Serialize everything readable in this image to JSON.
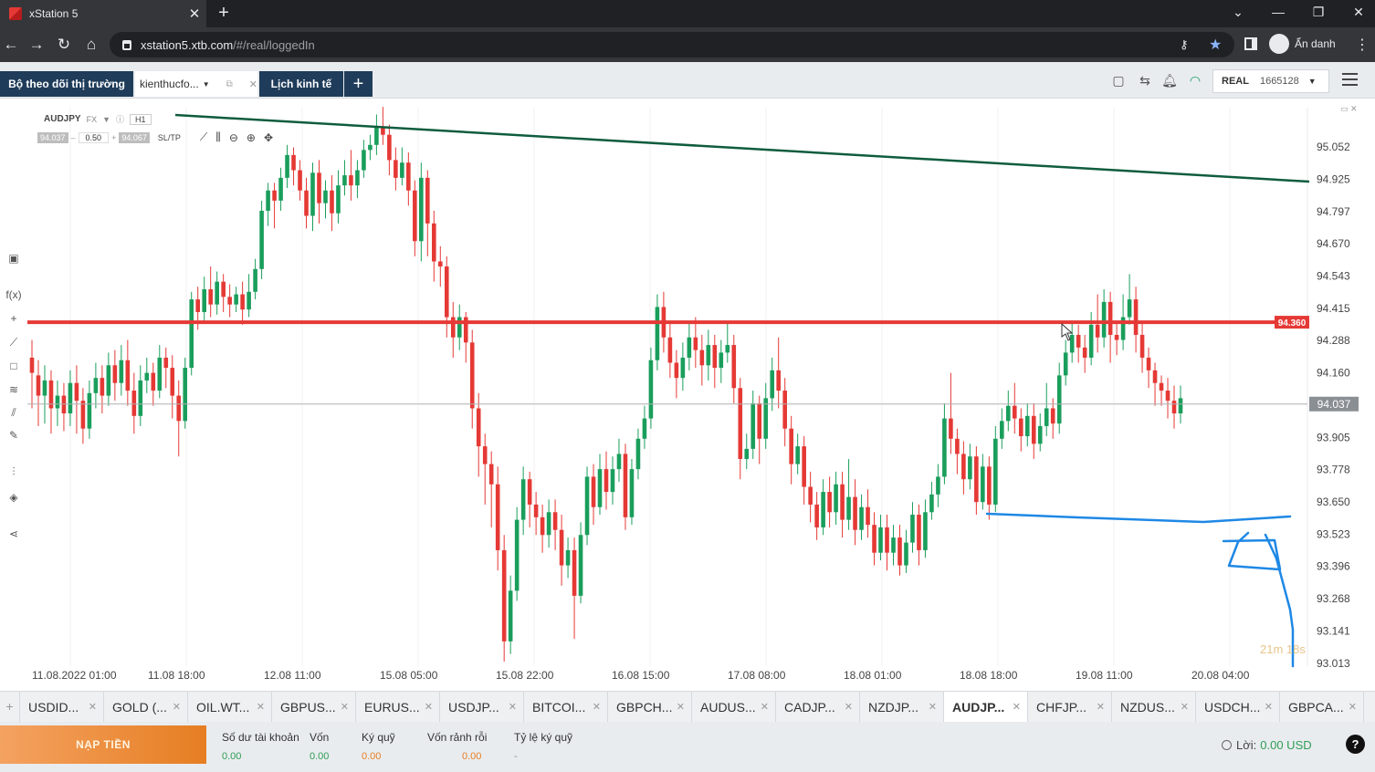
{
  "browser": {
    "tab_title": "xStation 5",
    "url_host": "xstation5.xtb.com",
    "url_path": "/#/real/loggedIn",
    "profile_label": "Ẩn danh"
  },
  "workspace_tabs": [
    "Bộ theo dõi thị trường",
    "kienthucfo...",
    "Lịch kinh tế"
  ],
  "account": {
    "type": "REAL",
    "id": "1665128"
  },
  "chart_header": {
    "symbol": "AUDJPY",
    "market": "FX",
    "timeframe": "H1",
    "bid": "94.037",
    "ask": "94.067",
    "lot": "0.50",
    "sltp": "SL/TP"
  },
  "chart_data": {
    "type": "candlestick",
    "price_axis_labels": [
      "95.052",
      "94.925",
      "94.797",
      "94.670",
      "94.543",
      "94.415",
      "94.288",
      "94.160",
      "94.037",
      "93.905",
      "93.778",
      "93.650",
      "93.523",
      "93.396",
      "93.268",
      "93.141",
      "93.013"
    ],
    "time_axis_labels": [
      "11.08.2022 01:00",
      "11.08 18:00",
      "12.08 11:00",
      "15.08 05:00",
      "15.08 22:00",
      "16.08 15:00",
      "17.08 08:00",
      "18.08 01:00",
      "18.08 18:00",
      "19.08 11:00",
      "20.08 04:00"
    ],
    "ylim": [
      93.013,
      95.052
    ],
    "current_price": "94.037",
    "horizontal_level": {
      "label": "94.360",
      "color": "#e53935"
    },
    "trendline_color": "#0f5c3e",
    "annotation_color": "#1e88e5",
    "up_color": "#1a9e5c",
    "down_color": "#e53935",
    "candles": [
      [
        94.22,
        94.16,
        94.29,
        94.02
      ],
      [
        94.15,
        94.07,
        94.21,
        93.95
      ],
      [
        94.07,
        94.13,
        94.19,
        93.96
      ],
      [
        94.13,
        94.02,
        94.17,
        93.92
      ],
      [
        94.02,
        94.07,
        94.13,
        93.95
      ],
      [
        94.07,
        94.0,
        94.12,
        93.93
      ],
      [
        94.0,
        94.12,
        94.17,
        93.95
      ],
      [
        94.12,
        94.05,
        94.19,
        93.92
      ],
      [
        94.05,
        93.94,
        94.1,
        93.88
      ],
      [
        93.94,
        94.08,
        94.13,
        93.9
      ],
      [
        94.08,
        94.14,
        94.2,
        94.02
      ],
      [
        94.14,
        94.07,
        94.19,
        94.0
      ],
      [
        94.07,
        94.19,
        94.24,
        94.03
      ],
      [
        94.19,
        94.12,
        94.25,
        94.05
      ],
      [
        94.12,
        94.21,
        94.27,
        94.07
      ],
      [
        94.21,
        94.09,
        94.29,
        94.03
      ],
      [
        94.09,
        93.99,
        94.16,
        93.92
      ],
      [
        93.99,
        94.13,
        94.19,
        93.95
      ],
      [
        94.13,
        94.16,
        94.22,
        94.08
      ],
      [
        94.16,
        94.09,
        94.2,
        94.03
      ],
      [
        94.09,
        94.22,
        94.27,
        94.06
      ],
      [
        94.22,
        94.18,
        94.26,
        94.1
      ],
      [
        94.18,
        94.07,
        94.23,
        93.98
      ],
      [
        94.07,
        93.97,
        94.13,
        93.83
      ],
      [
        93.97,
        94.18,
        94.22,
        93.94
      ],
      [
        94.18,
        94.45,
        94.48,
        94.15
      ],
      [
        94.45,
        94.4,
        94.5,
        94.33
      ],
      [
        94.4,
        94.49,
        94.54,
        94.36
      ],
      [
        94.49,
        94.43,
        94.58,
        94.38
      ],
      [
        94.43,
        94.52,
        94.56,
        94.39
      ],
      [
        94.52,
        94.46,
        94.55,
        94.4
      ],
      [
        94.46,
        94.43,
        94.51,
        94.38
      ],
      [
        94.43,
        94.47,
        94.5,
        94.4
      ],
      [
        94.47,
        94.41,
        94.52,
        94.35
      ],
      [
        94.41,
        94.48,
        94.55,
        94.38
      ],
      [
        94.48,
        94.57,
        94.61,
        94.45
      ],
      [
        94.57,
        94.8,
        94.84,
        94.53
      ],
      [
        94.8,
        94.88,
        94.91,
        94.74
      ],
      [
        94.88,
        94.84,
        94.91,
        94.73
      ],
      [
        94.84,
        94.93,
        94.97,
        94.8
      ],
      [
        94.93,
        95.02,
        95.06,
        94.89
      ],
      [
        95.02,
        94.96,
        95.05,
        94.9
      ],
      [
        94.96,
        94.88,
        95.0,
        94.84
      ],
      [
        94.88,
        94.78,
        94.93,
        94.73
      ],
      [
        94.78,
        94.95,
        94.99,
        94.72
      ],
      [
        94.95,
        94.83,
        95.0,
        94.75
      ],
      [
        94.83,
        94.88,
        94.92,
        94.77
      ],
      [
        94.88,
        94.79,
        94.94,
        94.72
      ],
      [
        94.79,
        94.9,
        94.96,
        94.75
      ],
      [
        94.9,
        94.94,
        95.0,
        94.86
      ],
      [
        94.94,
        94.9,
        95.04,
        94.84
      ],
      [
        94.9,
        94.96,
        95.0,
        94.85
      ],
      [
        94.96,
        95.04,
        95.08,
        94.93
      ],
      [
        95.04,
        95.06,
        95.1,
        95.0
      ],
      [
        95.06,
        95.13,
        95.18,
        95.02
      ],
      [
        95.13,
        95.1,
        95.21,
        95.06
      ],
      [
        95.1,
        95.0,
        95.14,
        94.94
      ],
      [
        95.0,
        94.93,
        95.05,
        94.88
      ],
      [
        94.93,
        94.99,
        95.05,
        94.9
      ],
      [
        94.99,
        94.88,
        95.03,
        94.82
      ],
      [
        94.88,
        94.68,
        94.92,
        94.62
      ],
      [
        94.68,
        94.93,
        94.99,
        94.6
      ],
      [
        94.93,
        94.75,
        94.96,
        94.62
      ],
      [
        94.75,
        94.6,
        94.8,
        94.52
      ],
      [
        94.6,
        94.58,
        94.66,
        94.5
      ],
      [
        94.58,
        94.38,
        94.62,
        94.3
      ],
      [
        94.38,
        94.3,
        94.44,
        94.22
      ],
      [
        94.3,
        94.38,
        94.43,
        94.25
      ],
      [
        94.38,
        94.28,
        94.4,
        94.2
      ],
      [
        94.28,
        94.02,
        94.33,
        93.94
      ],
      [
        94.02,
        93.87,
        94.08,
        93.75
      ],
      [
        93.87,
        93.8,
        93.92,
        93.64
      ],
      [
        93.8,
        93.72,
        93.85,
        93.55
      ],
      [
        93.72,
        93.46,
        93.79,
        93.38
      ],
      [
        93.46,
        93.1,
        93.52,
        93.02
      ],
      [
        93.1,
        93.3,
        93.36,
        93.05
      ],
      [
        93.3,
        93.58,
        93.63,
        93.26
      ],
      [
        93.58,
        93.74,
        93.79,
        93.52
      ],
      [
        93.74,
        93.64,
        93.77,
        93.55
      ],
      [
        93.64,
        93.59,
        93.69,
        93.52
      ],
      [
        93.59,
        93.52,
        93.64,
        93.45
      ],
      [
        93.52,
        93.61,
        93.66,
        93.47
      ],
      [
        93.61,
        93.54,
        93.66,
        93.46
      ],
      [
        93.54,
        93.4,
        93.6,
        93.32
      ],
      [
        93.4,
        93.46,
        93.51,
        93.35
      ],
      [
        93.46,
        93.28,
        93.51,
        93.11
      ],
      [
        93.28,
        93.52,
        93.57,
        93.25
      ],
      [
        93.52,
        93.75,
        93.79,
        93.48
      ],
      [
        93.75,
        93.63,
        93.8,
        93.56
      ],
      [
        93.63,
        93.78,
        93.84,
        93.6
      ],
      [
        93.78,
        93.69,
        93.85,
        93.62
      ],
      [
        93.69,
        93.78,
        93.83,
        93.64
      ],
      [
        93.78,
        93.84,
        93.9,
        93.73
      ],
      [
        93.84,
        93.59,
        93.88,
        93.54
      ],
      [
        93.59,
        93.78,
        93.82,
        93.56
      ],
      [
        93.78,
        93.9,
        93.94,
        93.74
      ],
      [
        93.9,
        93.98,
        94.03,
        93.86
      ],
      [
        93.98,
        94.21,
        94.26,
        93.94
      ],
      [
        94.21,
        94.42,
        94.47,
        94.17
      ],
      [
        94.42,
        94.3,
        94.48,
        94.24
      ],
      [
        94.3,
        94.2,
        94.36,
        94.14
      ],
      [
        94.2,
        94.14,
        94.25,
        94.06
      ],
      [
        94.14,
        94.22,
        94.28,
        94.09
      ],
      [
        94.22,
        94.3,
        94.36,
        94.17
      ],
      [
        94.3,
        94.25,
        94.38,
        94.18
      ],
      [
        94.25,
        94.19,
        94.31,
        94.11
      ],
      [
        94.19,
        94.27,
        94.33,
        94.13
      ],
      [
        94.27,
        94.18,
        94.31,
        94.1
      ],
      [
        94.18,
        94.24,
        94.29,
        94.12
      ],
      [
        94.24,
        94.27,
        94.36,
        94.2
      ],
      [
        94.27,
        94.1,
        94.31,
        94.04
      ],
      [
        94.1,
        93.82,
        94.14,
        93.74
      ],
      [
        93.82,
        93.86,
        93.92,
        93.78
      ],
      [
        93.86,
        94.04,
        94.09,
        93.82
      ],
      [
        94.04,
        93.9,
        94.07,
        93.8
      ],
      [
        93.9,
        94.06,
        94.12,
        93.86
      ],
      [
        94.06,
        94.17,
        94.22,
        94.01
      ],
      [
        94.17,
        94.09,
        94.3,
        94.02
      ],
      [
        94.09,
        93.94,
        94.14,
        93.87
      ],
      [
        93.94,
        93.8,
        93.99,
        93.72
      ],
      [
        93.8,
        93.87,
        93.92,
        93.76
      ],
      [
        93.87,
        93.71,
        93.91,
        93.64
      ],
      [
        93.71,
        93.64,
        93.77,
        93.57
      ],
      [
        93.64,
        93.55,
        93.69,
        93.5
      ],
      [
        93.55,
        93.69,
        93.74,
        93.52
      ],
      [
        93.69,
        93.61,
        93.75,
        93.55
      ],
      [
        93.61,
        93.72,
        93.77,
        93.56
      ],
      [
        93.72,
        93.58,
        93.77,
        93.51
      ],
      [
        93.58,
        93.67,
        93.82,
        93.54
      ],
      [
        93.67,
        93.54,
        93.74,
        93.48
      ],
      [
        93.54,
        93.63,
        93.68,
        93.5
      ],
      [
        93.63,
        93.56,
        93.7,
        93.51
      ],
      [
        93.56,
        93.45,
        93.61,
        93.4
      ],
      [
        93.45,
        93.55,
        93.6,
        93.42
      ],
      [
        93.55,
        93.45,
        93.6,
        93.38
      ],
      [
        93.45,
        93.51,
        93.56,
        93.4
      ],
      [
        93.51,
        93.4,
        93.56,
        93.36
      ],
      [
        93.4,
        93.49,
        93.54,
        93.37
      ],
      [
        93.49,
        93.6,
        93.65,
        93.45
      ],
      [
        93.6,
        93.46,
        93.64,
        93.4
      ],
      [
        93.46,
        93.61,
        93.66,
        93.43
      ],
      [
        93.61,
        93.68,
        93.73,
        93.58
      ],
      [
        93.68,
        93.75,
        93.8,
        93.63
      ],
      [
        93.75,
        93.98,
        94.04,
        93.72
      ],
      [
        93.98,
        93.9,
        94.16,
        93.84
      ],
      [
        93.9,
        93.84,
        93.94,
        93.76
      ],
      [
        93.84,
        93.74,
        93.89,
        93.68
      ],
      [
        93.74,
        93.83,
        93.88,
        93.7
      ],
      [
        93.83,
        93.65,
        93.87,
        93.6
      ],
      [
        93.65,
        93.79,
        93.84,
        93.62
      ],
      [
        93.79,
        93.64,
        93.83,
        93.58
      ],
      [
        93.64,
        93.9,
        93.95,
        93.61
      ],
      [
        93.9,
        93.97,
        94.02,
        93.86
      ],
      [
        93.97,
        94.03,
        94.09,
        93.93
      ],
      [
        94.03,
        93.98,
        94.12,
        93.92
      ],
      [
        93.98,
        93.91,
        94.02,
        93.85
      ],
      [
        93.91,
        93.99,
        94.04,
        93.87
      ],
      [
        93.99,
        93.88,
        94.04,
        93.82
      ],
      [
        93.88,
        93.95,
        94.0,
        93.85
      ],
      [
        93.95,
        94.02,
        94.12,
        93.91
      ],
      [
        94.02,
        93.96,
        94.06,
        93.9
      ],
      [
        93.96,
        94.15,
        94.2,
        93.92
      ],
      [
        94.15,
        94.24,
        94.29,
        94.11
      ],
      [
        94.24,
        94.31,
        94.36,
        94.2
      ],
      [
        94.31,
        94.26,
        94.35,
        94.2
      ],
      [
        94.26,
        94.22,
        94.31,
        94.16
      ],
      [
        94.22,
        94.35,
        94.4,
        94.19
      ],
      [
        94.35,
        94.3,
        94.47,
        94.24
      ],
      [
        94.3,
        94.44,
        94.49,
        94.26
      ],
      [
        94.44,
        94.31,
        94.48,
        94.2
      ],
      [
        94.31,
        94.29,
        94.36,
        94.23
      ],
      [
        94.29,
        94.38,
        94.47,
        94.25
      ],
      [
        94.38,
        94.45,
        94.55,
        94.35
      ],
      [
        94.45,
        94.31,
        94.5,
        94.24
      ],
      [
        94.31,
        94.22,
        94.36,
        94.16
      ],
      [
        94.22,
        94.17,
        94.26,
        94.1
      ],
      [
        94.17,
        94.12,
        94.2,
        94.03
      ],
      [
        94.12,
        94.09,
        94.15,
        94.03
      ],
      [
        94.09,
        94.05,
        94.14,
        93.98
      ],
      [
        94.05,
        94.0,
        94.11,
        93.94
      ],
      [
        94.0,
        94.06,
        94.11,
        93.96
      ]
    ]
  },
  "instrument_tabs": [
    "USDID...",
    "GOLD (...",
    "OIL.WT...",
    "GBPUS...",
    "EURUS...",
    "USDJP...",
    "BITCOI...",
    "GBPCH...",
    "AUDUS...",
    "CADJP...",
    "NZDJP...",
    "AUDJP...",
    "CHFJP...",
    "NZDUS...",
    "USDCH...",
    "GBPCA..."
  ],
  "active_instrument": "AUDJP...",
  "footer": {
    "deposit_label": "NẠP TIỀN",
    "stats": [
      {
        "label": "Số dư tài khoản",
        "value": "0.00"
      },
      {
        "label": "Vốn",
        "value": "0.00"
      },
      {
        "label": "Ký quỹ",
        "value": "0.00"
      },
      {
        "label": "Vốn rảnh rỗi",
        "value": "0.00"
      },
      {
        "label": "Tỷ lệ ký quỹ",
        "value": "-"
      }
    ],
    "profit_label": "Lời:",
    "profit_value": "0.00 USD"
  },
  "timer": "21m 18s"
}
